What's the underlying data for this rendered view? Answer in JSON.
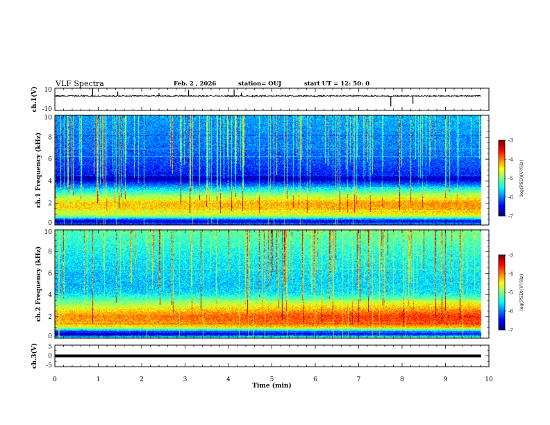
{
  "header": {
    "title": "VLF Spectra",
    "date": "Feb. 2 , 2026",
    "station": "station= OUJ",
    "start": "start UT = 12: 50: 0"
  },
  "chart_data": [
    {
      "type": "line",
      "name": "ch1-waveform",
      "ylabel": "ch.1(V)",
      "ylim": [
        -10,
        10
      ],
      "ytick_labels": [
        "10",
        "-10"
      ],
      "baseline": 3.0,
      "noise": 0.6,
      "spikes": [
        {
          "t": 0.87,
          "v": 10.0
        },
        {
          "t": 1.45,
          "v": 7.0
        },
        {
          "t": 3.08,
          "v": 8.5
        },
        {
          "t": 4.13,
          "v": 9.0
        },
        {
          "t": 4.3,
          "v": 6.0
        },
        {
          "t": 7.74,
          "v": -6.5
        },
        {
          "t": 8.25,
          "v": -4.0
        },
        {
          "t": 2.4,
          "v": 5.5
        }
      ],
      "xlim": [
        0,
        10
      ]
    },
    {
      "type": "heatmap",
      "name": "ch1-spectrogram",
      "ylabel": "ch.1 Frequency (kHz)",
      "ylim": [
        0,
        10
      ],
      "ytick_labels": [
        "0",
        "2",
        "4",
        "6",
        "8",
        "10"
      ],
      "xlim": [
        0,
        10
      ],
      "data_end_min": 9.82,
      "colorbar": {
        "label": "log(PSD)(V²/Hz)",
        "range": [
          -7,
          -3
        ],
        "tick_labels": [
          "-3",
          "-4",
          "-5",
          "-6",
          "-7"
        ]
      },
      "profile": [
        {
          "f": 0.0,
          "v": -6.3
        },
        {
          "f": 0.35,
          "v": -6.8
        },
        {
          "f": 0.7,
          "v": -5.2
        },
        {
          "f": 1.0,
          "v": -4.7
        },
        {
          "f": 1.5,
          "v": -4.4
        },
        {
          "f": 2.0,
          "v": -4.35
        },
        {
          "f": 2.6,
          "v": -4.9
        },
        {
          "f": 3.2,
          "v": -5.6
        },
        {
          "f": 3.8,
          "v": -6.3
        },
        {
          "f": 4.2,
          "v": -6.9
        },
        {
          "f": 4.6,
          "v": -6.5
        },
        {
          "f": 5.5,
          "v": -6.3
        },
        {
          "f": 7.0,
          "v": -6.1
        },
        {
          "f": 8.5,
          "v": -6.0
        },
        {
          "f": 10.0,
          "v": -5.9
        }
      ],
      "trend": [
        {
          "t": 0,
          "d": 0.0
        },
        {
          "t": 5,
          "d": 0.15
        },
        {
          "t": 9.8,
          "d": 0.3
        }
      ]
    },
    {
      "type": "heatmap",
      "name": "ch2-spectrogram",
      "ylabel": "ch.2 Frequency (kHz)",
      "ylim": [
        0,
        10
      ],
      "ytick_labels": [
        "0",
        "2",
        "4",
        "6",
        "8",
        "10"
      ],
      "xlim": [
        0,
        10
      ],
      "data_end_min": 9.82,
      "colorbar": {
        "label": "log(PSD)(V²/Hz)",
        "range": [
          -7,
          -3
        ],
        "tick_labels": [
          "-3",
          "-4",
          "-5",
          "-6",
          "-7"
        ]
      },
      "profile": [
        {
          "f": 0.0,
          "v": -5.4
        },
        {
          "f": 0.35,
          "v": -7.0
        },
        {
          "f": 0.7,
          "v": -5.8
        },
        {
          "f": 1.0,
          "v": -4.6
        },
        {
          "f": 1.5,
          "v": -4.2
        },
        {
          "f": 2.0,
          "v": -4.1
        },
        {
          "f": 2.6,
          "v": -4.5
        },
        {
          "f": 3.2,
          "v": -5.0
        },
        {
          "f": 3.8,
          "v": -5.4
        },
        {
          "f": 4.2,
          "v": -5.7
        },
        {
          "f": 5.0,
          "v": -5.8
        },
        {
          "f": 6.5,
          "v": -5.7
        },
        {
          "f": 8.0,
          "v": -5.5
        },
        {
          "f": 10.0,
          "v": -5.2
        }
      ],
      "trend": [
        {
          "t": 0,
          "d": 0.0
        },
        {
          "t": 5,
          "d": 0.3
        },
        {
          "t": 9.8,
          "d": 0.45
        }
      ]
    },
    {
      "type": "line",
      "name": "ch3-waveform",
      "ylabel": "ch.3(V)",
      "ylim": [
        -5,
        5
      ],
      "ytick_labels": [
        "5",
        "0",
        "-5"
      ],
      "baseline": 0.0,
      "noise": 0.0,
      "xlim": [
        0,
        10
      ],
      "xlabel": "Time (min)",
      "xtick_labels": [
        "0",
        "1",
        "2",
        "3",
        "4",
        "5",
        "6",
        "7",
        "8",
        "9",
        "10"
      ]
    }
  ]
}
